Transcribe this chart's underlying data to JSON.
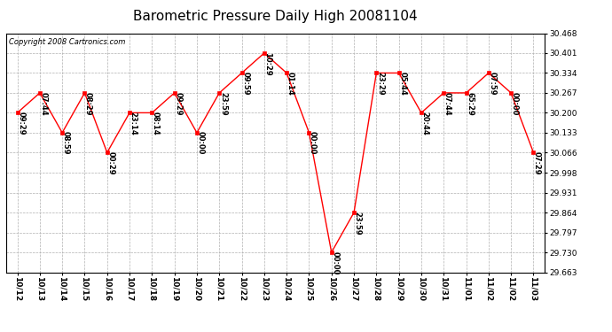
{
  "title": "Barometric Pressure Daily High 20081104",
  "copyright": "Copyright 2008 Cartronics.com",
  "x_labels": [
    "10/12",
    "10/13",
    "10/14",
    "10/15",
    "10/16",
    "10/17",
    "10/18",
    "10/19",
    "10/20",
    "10/21",
    "10/22",
    "10/23",
    "10/24",
    "10/25",
    "10/26",
    "10/27",
    "10/28",
    "10/29",
    "10/30",
    "10/31",
    "11/01",
    "11/02",
    "11/02",
    "11/03"
  ],
  "y_values": [
    30.2,
    30.267,
    30.133,
    30.267,
    30.066,
    30.2,
    30.2,
    30.267,
    30.133,
    30.267,
    30.334,
    30.401,
    30.334,
    30.133,
    29.73,
    29.864,
    30.334,
    30.334,
    30.2,
    30.267,
    30.267,
    30.334,
    30.267,
    30.066
  ],
  "annotations": [
    "09:29",
    "07:44",
    "08:59",
    "08:29",
    "00:29",
    "23:14",
    "08:14",
    "09:29",
    "00:00",
    "23:59",
    "09:59",
    "10:29",
    "01:14",
    "00:00",
    "00:00",
    "23:59",
    "23:29",
    "05:44",
    "20:44",
    "07:44",
    "65:29",
    "07:59",
    "00:00",
    "07:29"
  ],
  "ylim_min": 29.663,
  "ylim_max": 30.468,
  "yticks": [
    29.663,
    29.73,
    29.797,
    29.864,
    29.931,
    29.998,
    30.066,
    30.133,
    30.2,
    30.267,
    30.334,
    30.401,
    30.468
  ],
  "line_color": "red",
  "marker_color": "red",
  "background_color": "white",
  "grid_color": "#b0b0b0",
  "title_fontsize": 11,
  "annotation_fontsize": 6.0,
  "tick_fontsize": 6.5,
  "copyright_fontsize": 6.0
}
